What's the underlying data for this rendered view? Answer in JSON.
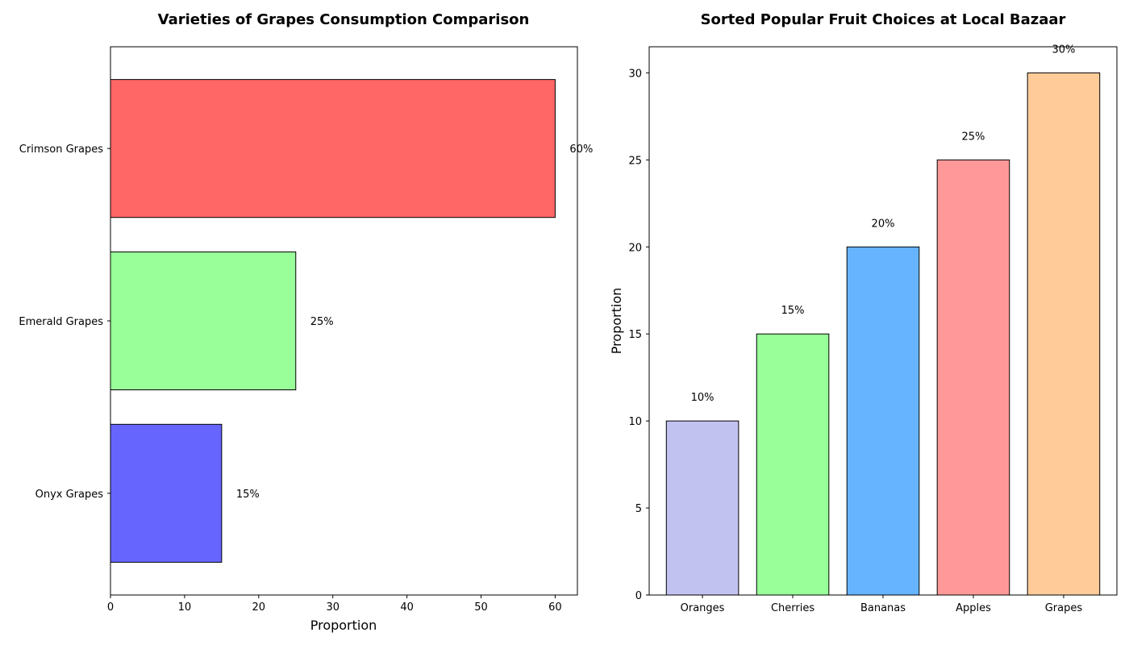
{
  "chart_data": [
    {
      "type": "bar",
      "orientation": "horizontal",
      "title": "Varieties of Grapes Consumption Comparison",
      "xlabel": "Proportion",
      "ylabel": "",
      "categories": [
        "Onyx Grapes",
        "Emerald Grapes",
        "Crimson Grapes"
      ],
      "values": [
        15,
        25,
        60
      ],
      "data_labels": [
        "15%",
        "25%",
        "60%"
      ],
      "colors": [
        "#6666ff",
        "#99ff99",
        "#ff6666"
      ],
      "xlim": [
        0,
        63
      ],
      "xticks": [
        0,
        10,
        20,
        30,
        40,
        50,
        60
      ],
      "grid": false
    },
    {
      "type": "bar",
      "orientation": "vertical",
      "title": "Sorted Popular Fruit Choices at Local Bazaar",
      "xlabel": "",
      "ylabel": "Proportion",
      "categories": [
        "Oranges",
        "Cherries",
        "Bananas",
        "Apples",
        "Grapes"
      ],
      "values": [
        10,
        15,
        20,
        25,
        30
      ],
      "data_labels": [
        "10%",
        "15%",
        "20%",
        "25%",
        "30%"
      ],
      "colors": [
        "#c2c2f0",
        "#99ff99",
        "#66b3ff",
        "#ff9999",
        "#ffcc99"
      ],
      "ylim": [
        0,
        31.5
      ],
      "yticks": [
        0,
        5,
        10,
        15,
        20,
        25,
        30
      ],
      "grid": false
    }
  ]
}
